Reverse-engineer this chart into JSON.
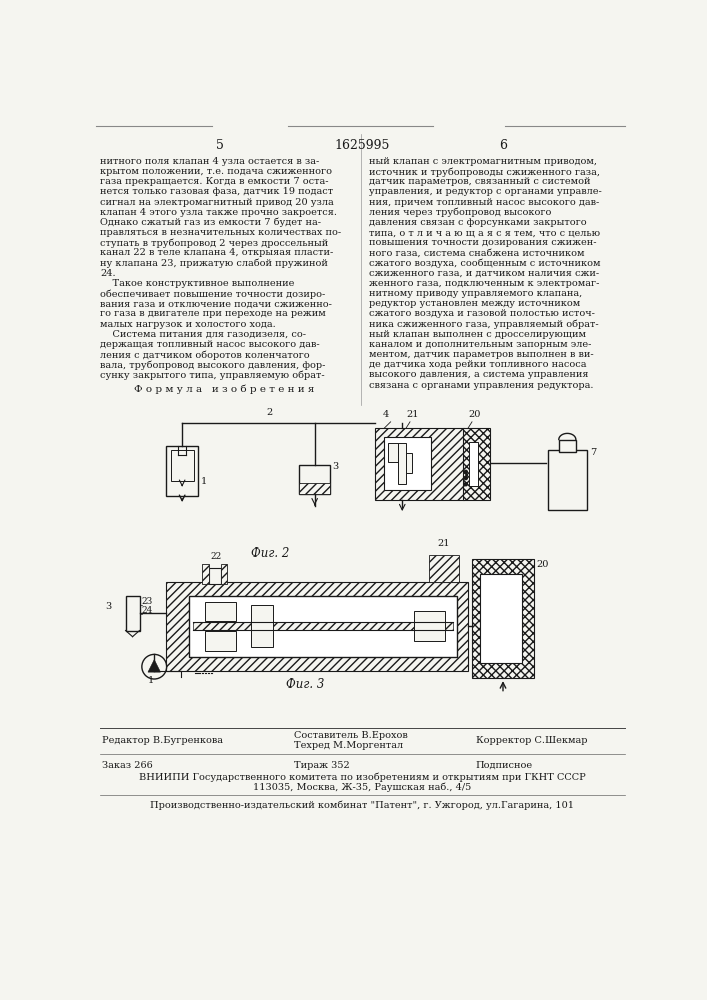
{
  "patent_number": "1625995",
  "page_left": "5",
  "page_right": "6",
  "bg_color": "#f5f5f0",
  "text_color": "#1a1a1a",
  "left_column_text": [
    "нитного поля клапан 4 узла остается в за-",
    "крытом положении, т.е. подача сжиженного",
    "газа прекращается. Когда в емкости 7 оста-",
    "нется только газовая фаза, датчик 19 подаст",
    "сигнал на электромагнитный привод 20 узла",
    "клапан 4 этого узла также прочно закроется.",
    "Однако сжатый газ из емкости 7 будет на-",
    "правляться в незначительных количествах по-",
    "ступать в трубопровод 2 через дроссельный",
    "канал 22 в теле клапана 4, открыяая пласти-",
    "ну клапана 23, прижатую слабой пружиной",
    "24.",
    "    Такое конструктивное выполнение",
    "обеспечивает повышение точности дозиро-",
    "вания газа и отключение подачи сжиженно-",
    "го газа в двигателе при переходе на режим",
    "малых нагрузок и холостого хода.",
    "    Система питания для газодизеля, со-",
    "держащая топливный насос высокого дав-",
    "ления с датчиком оборотов коленчатого",
    "вала, трубопровод высокого давления, фор-",
    "сунку закрытого типа, управляемую обрат-"
  ],
  "right_column_text": [
    "ный клапан с электромагнитным приводом,",
    "источник и трубопроводы сжиженного газа,",
    "датчик параметров, связанный с системой",
    "управления, и редуктор с органами управле-",
    "ния, причем топливный насос высокого дав-",
    "ления через трубопровод высокого",
    "давления связан с форсунками закрытого",
    "типа, о т л и ч а ю щ а я с я тем, что с целью",
    "повышения точности дозирования сжижен-",
    "ного газа, система снабжена источником",
    "сжатого воздуха, сообщенным с источником",
    "сжиженного газа, и датчиком наличия сжи-",
    "женного газа, подключенным к электромаг-",
    "нитному приводу управляемого клапана,",
    "редуктор установлен между источником",
    "сжатого воздуха и газовой полостью источ-",
    "ника сжиженного газа, управляемый обрат-",
    "ный клапан выполнен с дросселирующим",
    "каналом и дополнительным запорным эле-",
    "ментом, датчик параметров выполнен в ви-",
    "де датчика хода рейки топливного насоса",
    "высокого давления, а система управления",
    "связана с органами управления редуктора."
  ],
  "formula_header": "Ф о р м у л а   и з о б р е т е н и я",
  "fig2_label": "Фиг. 2",
  "fig3_label": "Фиг. 3",
  "footer_editor": "Редактор В.Бугренкова",
  "footer_compiler": "Составитель В.Ерохов",
  "footer_techred": "Техред М.Моргентал",
  "footer_corrector": "Корректор С.Шекмар",
  "footer_order": "Заказ 266",
  "footer_circulation": "Тираж 352",
  "footer_subscription": "Подписное",
  "footer_vniiipi": "ВНИИПИ Государственного комитета по изобретениям и открытиям при ГКНТ СССР",
  "footer_address": "113035, Москва, Ж-35, Раушская наб., 4/5",
  "footer_plant": "Производственно-издательский комбинат \"Патент\", г. Ужгород, ул.Гагарина, 101"
}
